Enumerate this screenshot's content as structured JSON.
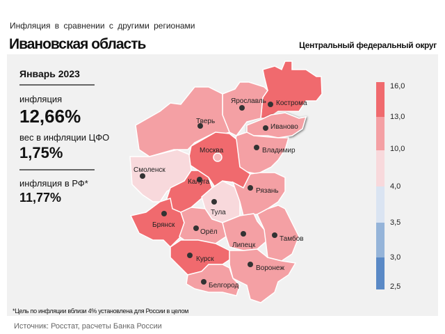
{
  "header": {
    "subtitle": "Инфляция в сравнении с другими регионами",
    "title": "Ивановская область",
    "district": "Центральный федеральный округ"
  },
  "stats": {
    "month": "Январь 2023",
    "inflation_label": "инфляция",
    "inflation_value": "12,66%",
    "weight_label": "вес в инфляции ЦФО",
    "weight_value": "1,75%",
    "rf_label": "инфляция в РФ*",
    "rf_value": "11,77%"
  },
  "colors": {
    "high": "#f06a6e",
    "medium": "#f4a0a4",
    "low": "#f8d9dc",
    "blue_light": "#dae4f2",
    "blue_mid": "#95b4d9",
    "blue_dark": "#5a89c6"
  },
  "legend": {
    "ticks": [
      "16,0",
      "13,0",
      "10,0",
      "4,0",
      "3,5",
      "3,0",
      "2,5"
    ]
  },
  "regions": [
    {
      "name": "Кострома",
      "class": "high"
    },
    {
      "name": "Ярославль",
      "class": "medium"
    },
    {
      "name": "Иваново",
      "class": "medium",
      "selected": true
    },
    {
      "name": "Владимир",
      "class": "medium"
    },
    {
      "name": "Тверь",
      "class": "medium"
    },
    {
      "name": "Москва",
      "class": "high"
    },
    {
      "name": "Смоленск",
      "class": "low"
    },
    {
      "name": "Калуга",
      "class": "high"
    },
    {
      "name": "Тула",
      "class": "low"
    },
    {
      "name": "Рязань",
      "class": "medium"
    },
    {
      "name": "Брянск",
      "class": "high"
    },
    {
      "name": "Орёл",
      "class": "medium"
    },
    {
      "name": "Липецк",
      "class": "medium"
    },
    {
      "name": "Тамбов",
      "class": "medium"
    },
    {
      "name": "Курск",
      "class": "high"
    },
    {
      "name": "Воронеж",
      "class": "medium"
    },
    {
      "name": "Белгород",
      "class": "medium"
    }
  ],
  "footnote": "*Цель по инфляции вблизи 4% установлена для России в целом",
  "source": "Источник: Росстат, расчеты Банка России"
}
